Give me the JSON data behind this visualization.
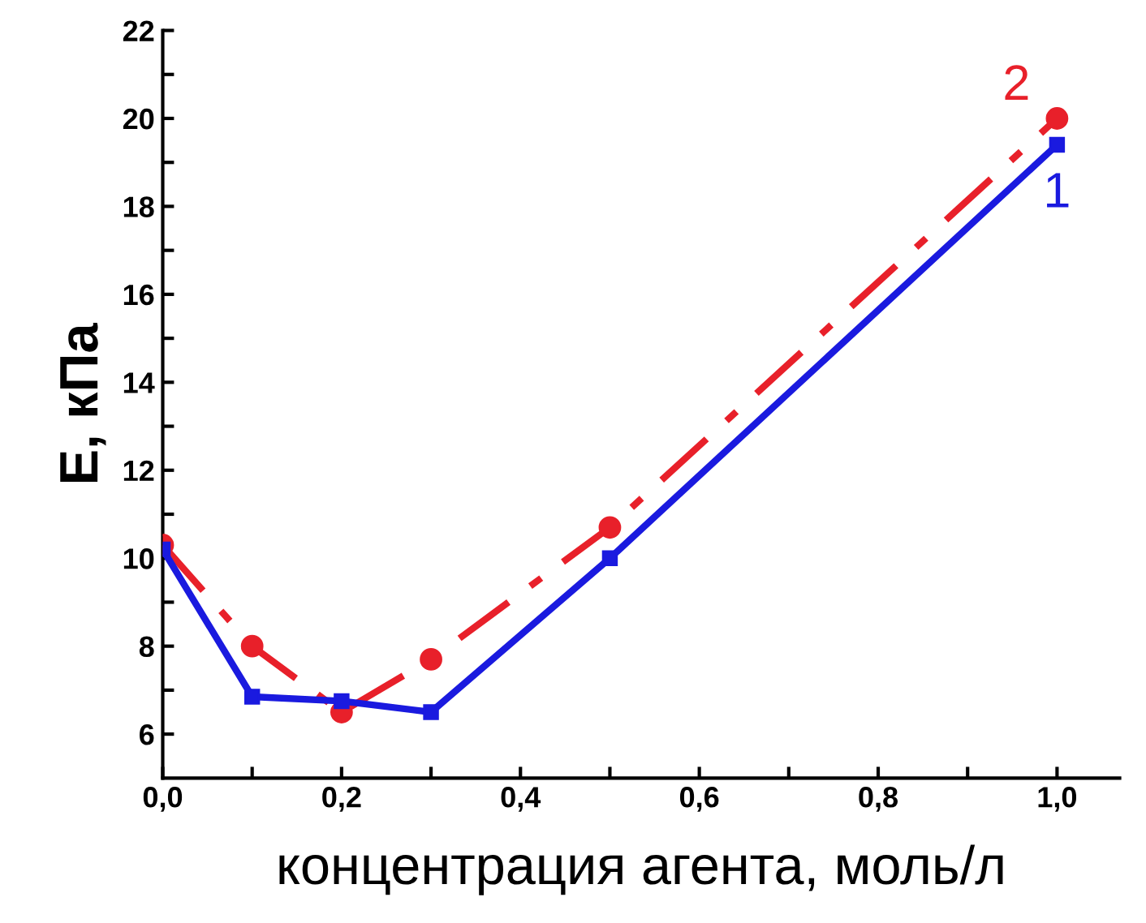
{
  "chart_data": {
    "type": "line",
    "xlabel": "концентрация агента, моль/л",
    "ylabel": "E, кПа",
    "x": [
      0,
      0.1,
      0.2,
      0.3,
      0.5,
      1.0
    ],
    "series": [
      {
        "name": "1",
        "color": "#1a1adf",
        "values": [
          10.2,
          6.85,
          6.75,
          6.5,
          10.0,
          19.4
        ],
        "marker": "square",
        "line_style": "solid"
      },
      {
        "name": "2",
        "color": "#e8202a",
        "values": [
          10.3,
          8.0,
          6.5,
          7.7,
          10.7,
          20.0
        ],
        "marker": "circle",
        "line_style": "dashdot"
      }
    ],
    "xlim": [
      0,
      1.07
    ],
    "ylim": [
      5,
      22
    ],
    "xticks": [
      {
        "value": 0,
        "label": "0,0"
      },
      {
        "value": 0.1,
        "label": null
      },
      {
        "value": 0.2,
        "label": "0,2"
      },
      {
        "value": 0.3,
        "label": null
      },
      {
        "value": 0.4,
        "label": "0,4"
      },
      {
        "value": 0.5,
        "label": null
      },
      {
        "value": 0.6,
        "label": "0,6"
      },
      {
        "value": 0.7,
        "label": null
      },
      {
        "value": 0.8,
        "label": "0,8"
      },
      {
        "value": 0.9,
        "label": null
      },
      {
        "value": 1.0,
        "label": "1,0"
      }
    ],
    "yticks": [
      6,
      {
        "value": 7,
        "label": null
      },
      8,
      {
        "value": 9,
        "label": null
      },
      10,
      {
        "value": 11,
        "label": null
      },
      12,
      {
        "value": 13,
        "label": null
      },
      14,
      {
        "value": 15,
        "label": null
      },
      16,
      {
        "value": 17,
        "label": null
      },
      18,
      {
        "value": 19,
        "label": null
      },
      20,
      {
        "value": 21,
        "label": null
      },
      22
    ],
    "grid": false,
    "legend": false
  }
}
